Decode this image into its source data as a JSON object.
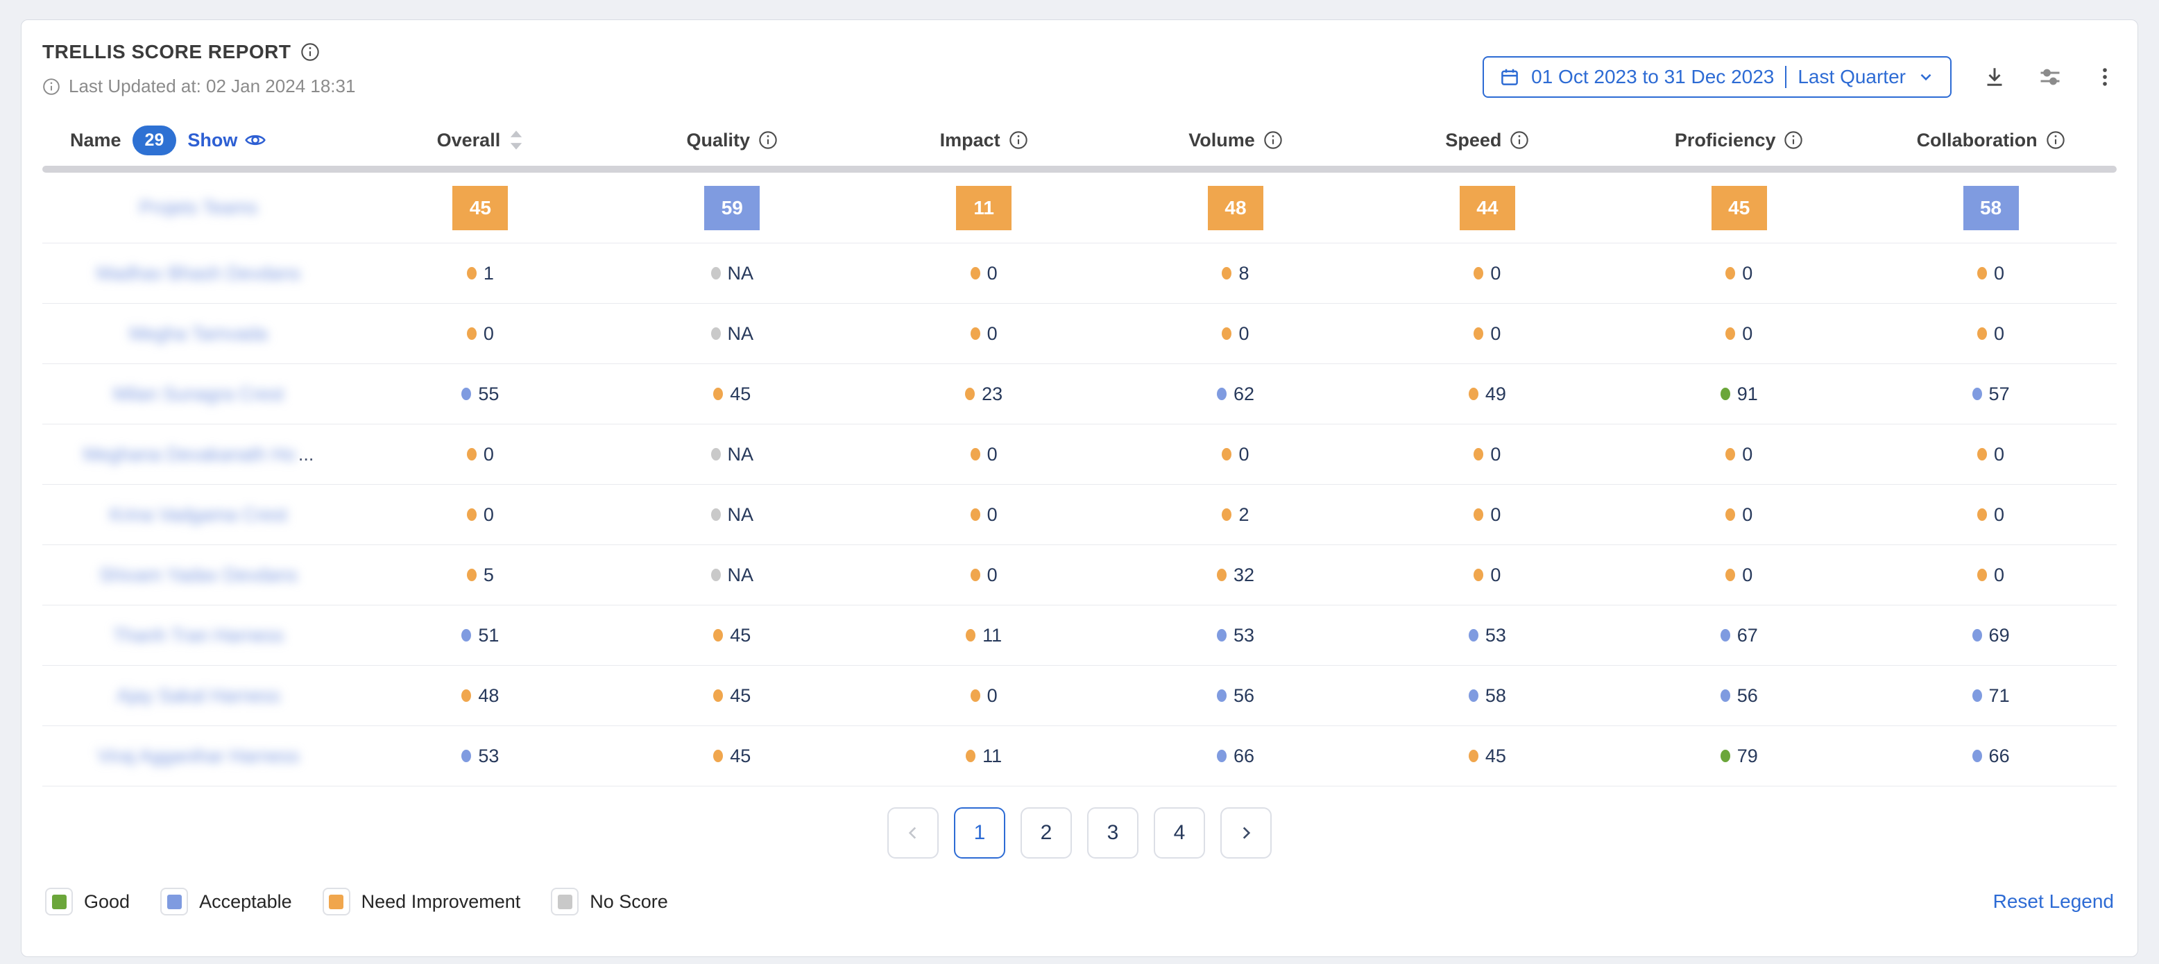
{
  "header": {
    "title": "TRELLIS SCORE REPORT",
    "last_updated": "Last Updated at: 02 Jan 2024 18:31",
    "date_range": "01 Oct 2023 to 31 Dec 2023",
    "date_preset": "Last Quarter"
  },
  "table": {
    "name_column": {
      "label": "Name",
      "badge_count": "29",
      "show_label": "Show"
    },
    "columns": [
      {
        "label": "Overall",
        "sortable": true
      },
      {
        "label": "Quality",
        "info": true
      },
      {
        "label": "Impact",
        "info": true
      },
      {
        "label": "Volume",
        "info": true
      },
      {
        "label": "Speed",
        "info": true
      },
      {
        "label": "Proficiency",
        "info": true
      },
      {
        "label": "Collaboration",
        "info": true
      }
    ],
    "status_colors": {
      "good": "#6BA63A",
      "acceptable": "#7F9BE0",
      "need_improvement": "#F0A64D",
      "no_score": "#C9C9C9"
    },
    "team_row": {
      "name": "Projets Teams",
      "redacted": true,
      "scores": [
        {
          "value": "45",
          "status": "need_improvement"
        },
        {
          "value": "59",
          "status": "acceptable"
        },
        {
          "value": "11",
          "status": "need_improvement"
        },
        {
          "value": "48",
          "status": "need_improvement"
        },
        {
          "value": "44",
          "status": "need_improvement"
        },
        {
          "value": "45",
          "status": "need_improvement"
        },
        {
          "value": "58",
          "status": "acceptable"
        }
      ]
    },
    "rows": [
      {
        "name": "Madhav Bhash Devdans",
        "redacted": true,
        "truncated": false,
        "values": [
          {
            "value": "1",
            "status": "need_improvement"
          },
          {
            "value": "NA",
            "status": "no_score"
          },
          {
            "value": "0",
            "status": "need_improvement"
          },
          {
            "value": "8",
            "status": "need_improvement"
          },
          {
            "value": "0",
            "status": "need_improvement"
          },
          {
            "value": "0",
            "status": "need_improvement"
          },
          {
            "value": "0",
            "status": "need_improvement"
          }
        ]
      },
      {
        "name": "Megha Tamvada",
        "redacted": true,
        "truncated": false,
        "values": [
          {
            "value": "0",
            "status": "need_improvement"
          },
          {
            "value": "NA",
            "status": "no_score"
          },
          {
            "value": "0",
            "status": "need_improvement"
          },
          {
            "value": "0",
            "status": "need_improvement"
          },
          {
            "value": "0",
            "status": "need_improvement"
          },
          {
            "value": "0",
            "status": "need_improvement"
          },
          {
            "value": "0",
            "status": "need_improvement"
          }
        ]
      },
      {
        "name": "Milan Sunagra Crest",
        "redacted": true,
        "truncated": false,
        "values": [
          {
            "value": "55",
            "status": "acceptable"
          },
          {
            "value": "45",
            "status": "need_improvement"
          },
          {
            "value": "23",
            "status": "need_improvement"
          },
          {
            "value": "62",
            "status": "acceptable"
          },
          {
            "value": "49",
            "status": "need_improvement"
          },
          {
            "value": "91",
            "status": "good"
          },
          {
            "value": "57",
            "status": "acceptable"
          }
        ]
      },
      {
        "name": "Meghana Devakanath Ho",
        "redacted": true,
        "truncated": true,
        "values": [
          {
            "value": "0",
            "status": "need_improvement"
          },
          {
            "value": "NA",
            "status": "no_score"
          },
          {
            "value": "0",
            "status": "need_improvement"
          },
          {
            "value": "0",
            "status": "need_improvement"
          },
          {
            "value": "0",
            "status": "need_improvement"
          },
          {
            "value": "0",
            "status": "need_improvement"
          },
          {
            "value": "0",
            "status": "need_improvement"
          }
        ]
      },
      {
        "name": "Krina Vadgama Crest",
        "redacted": true,
        "truncated": false,
        "values": [
          {
            "value": "0",
            "status": "need_improvement"
          },
          {
            "value": "NA",
            "status": "no_score"
          },
          {
            "value": "0",
            "status": "need_improvement"
          },
          {
            "value": "2",
            "status": "need_improvement"
          },
          {
            "value": "0",
            "status": "need_improvement"
          },
          {
            "value": "0",
            "status": "need_improvement"
          },
          {
            "value": "0",
            "status": "need_improvement"
          }
        ]
      },
      {
        "name": "Shivam Yadav Devdans",
        "redacted": true,
        "truncated": false,
        "values": [
          {
            "value": "5",
            "status": "need_improvement"
          },
          {
            "value": "NA",
            "status": "no_score"
          },
          {
            "value": "0",
            "status": "need_improvement"
          },
          {
            "value": "32",
            "status": "need_improvement"
          },
          {
            "value": "0",
            "status": "need_improvement"
          },
          {
            "value": "0",
            "status": "need_improvement"
          },
          {
            "value": "0",
            "status": "need_improvement"
          }
        ]
      },
      {
        "name": "Thanh Tran Harness",
        "redacted": true,
        "truncated": false,
        "values": [
          {
            "value": "51",
            "status": "acceptable"
          },
          {
            "value": "45",
            "status": "need_improvement"
          },
          {
            "value": "11",
            "status": "need_improvement"
          },
          {
            "value": "53",
            "status": "acceptable"
          },
          {
            "value": "53",
            "status": "acceptable"
          },
          {
            "value": "67",
            "status": "acceptable"
          },
          {
            "value": "69",
            "status": "acceptable"
          }
        ]
      },
      {
        "name": "Ajay Sakal Harness",
        "redacted": true,
        "truncated": false,
        "values": [
          {
            "value": "48",
            "status": "need_improvement"
          },
          {
            "value": "45",
            "status": "need_improvement"
          },
          {
            "value": "0",
            "status": "need_improvement"
          },
          {
            "value": "56",
            "status": "acceptable"
          },
          {
            "value": "58",
            "status": "acceptable"
          },
          {
            "value": "56",
            "status": "acceptable"
          },
          {
            "value": "71",
            "status": "acceptable"
          }
        ]
      },
      {
        "name": "Viraj Agganihar Harness",
        "redacted": true,
        "truncated": false,
        "values": [
          {
            "value": "53",
            "status": "acceptable"
          },
          {
            "value": "45",
            "status": "need_improvement"
          },
          {
            "value": "11",
            "status": "need_improvement"
          },
          {
            "value": "66",
            "status": "acceptable"
          },
          {
            "value": "45",
            "status": "need_improvement"
          },
          {
            "value": "79",
            "status": "good"
          },
          {
            "value": "66",
            "status": "acceptable"
          }
        ]
      }
    ]
  },
  "pagination": {
    "pages": [
      "1",
      "2",
      "3",
      "4"
    ],
    "active": "1"
  },
  "legend": {
    "items": [
      {
        "label": "Good",
        "status": "good"
      },
      {
        "label": "Acceptable",
        "status": "acceptable"
      },
      {
        "label": "Need Improvement",
        "status": "need_improvement"
      },
      {
        "label": "No Score",
        "status": "no_score"
      }
    ],
    "reset_label": "Reset Legend"
  }
}
